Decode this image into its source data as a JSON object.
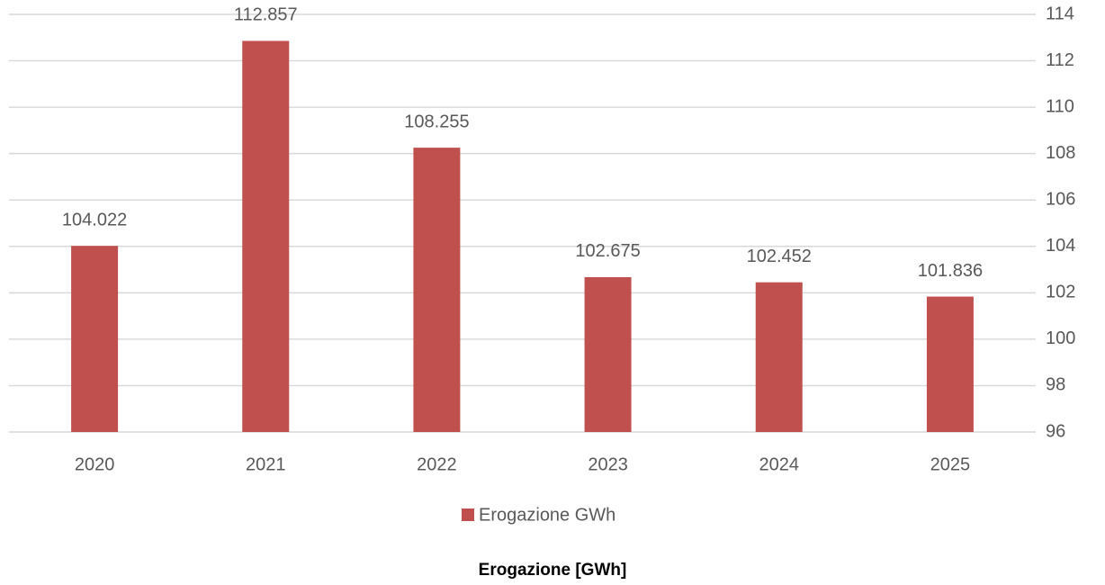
{
  "chart_data": {
    "type": "bar",
    "title": "Erogazione [GWh]",
    "categories": [
      "2020",
      "2021",
      "2022",
      "2023",
      "2024",
      "2025"
    ],
    "series": [
      {
        "name": "Erogazione GWh",
        "color": "#c0504d",
        "values": [
          104.022,
          112.857,
          108.255,
          102.675,
          102.452,
          101.836
        ]
      }
    ],
    "ylim": [
      96,
      114
    ],
    "yticks": [
      96,
      98,
      100,
      102,
      104,
      106,
      108,
      110,
      112,
      114
    ],
    "grid": true,
    "legend": "bottom",
    "y_axis_side": "right"
  }
}
